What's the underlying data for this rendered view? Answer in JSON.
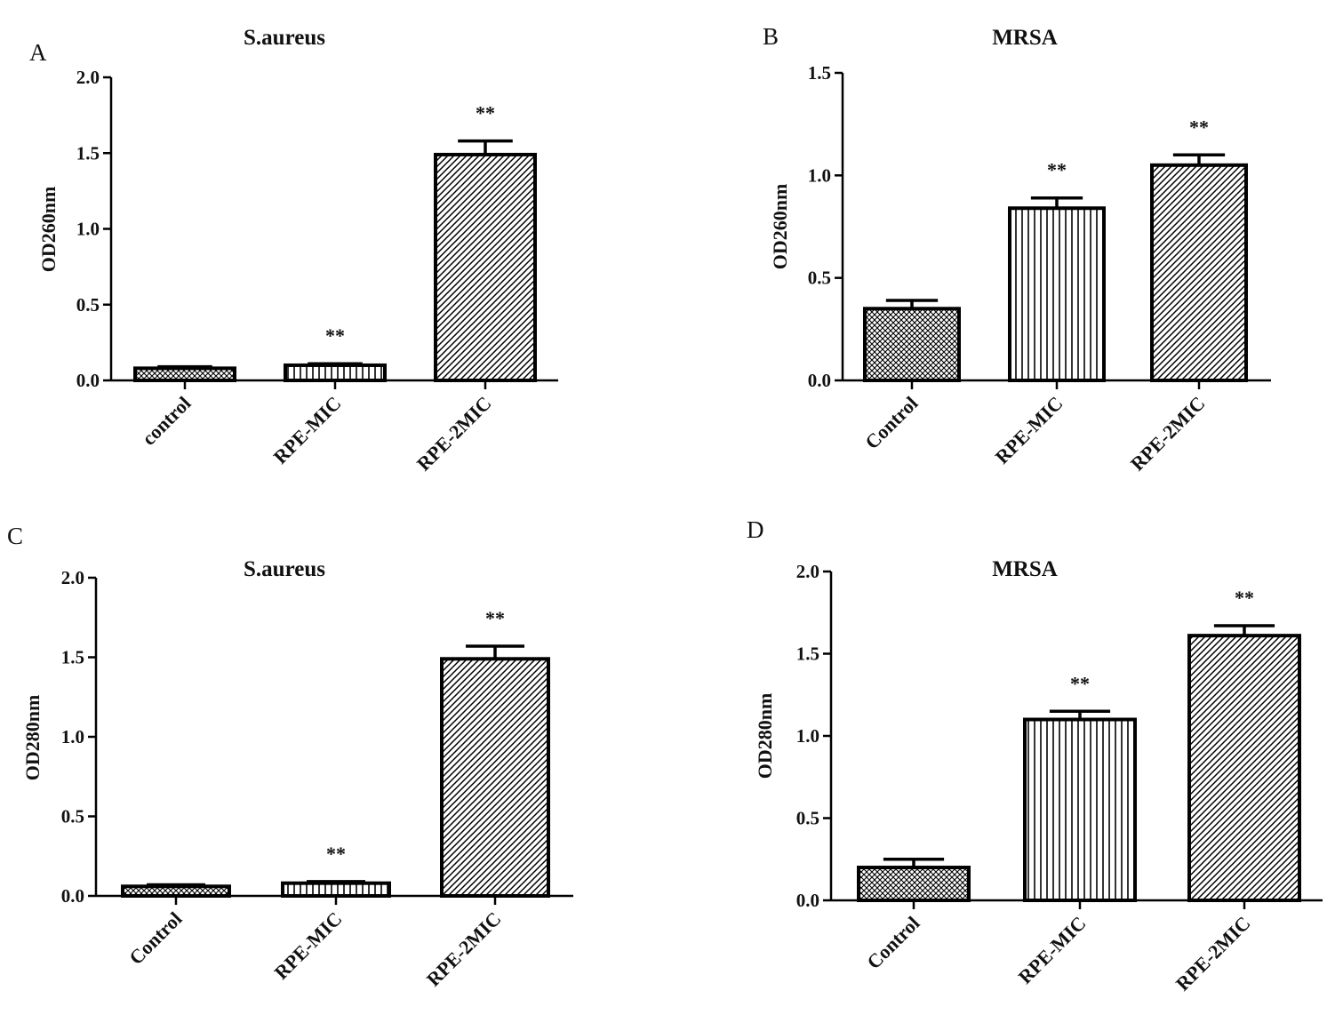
{
  "chart_data": [
    {
      "panel": "A",
      "type": "bar",
      "title": "S.aureus",
      "xlabel": "",
      "ylabel": "OD260nm",
      "ylim": [
        0,
        2.0
      ],
      "yticks": [
        "0.0",
        "0.5",
        "1.0",
        "1.5",
        "2.0"
      ],
      "categories": [
        "control",
        "RPE-MIC",
        "RPE-2MIC"
      ],
      "values": [
        0.08,
        0.1,
        1.49
      ],
      "errors": [
        0.01,
        0.01,
        0.09
      ],
      "annotations": [
        "",
        "**",
        "**"
      ],
      "patterns": [
        "crosshatch",
        "vertical",
        "diagonal"
      ]
    },
    {
      "panel": "B",
      "type": "bar",
      "title": "MRSA",
      "xlabel": "",
      "ylabel": "OD260nm",
      "ylim": [
        0,
        1.5
      ],
      "yticks": [
        "0.0",
        "0.5",
        "1.0",
        "1.5"
      ],
      "categories": [
        "Control",
        "RPE-MIC",
        "RPE-2MIC"
      ],
      "values": [
        0.35,
        0.84,
        1.05
      ],
      "errors": [
        0.04,
        0.05,
        0.05
      ],
      "annotations": [
        "",
        "**",
        "**"
      ],
      "patterns": [
        "crosshatch",
        "vertical",
        "diagonal"
      ]
    },
    {
      "panel": "C",
      "type": "bar",
      "title": "S.aureus",
      "xlabel": "",
      "ylabel": "OD280nm",
      "ylim": [
        0,
        2.0
      ],
      "yticks": [
        "0.0",
        "0.5",
        "1.0",
        "1.5",
        "2.0"
      ],
      "categories": [
        "Control",
        "RPE-MIC",
        "RPE-2MIC"
      ],
      "values": [
        0.06,
        0.08,
        1.49
      ],
      "errors": [
        0.01,
        0.01,
        0.08
      ],
      "annotations": [
        "",
        "**",
        "**"
      ],
      "patterns": [
        "crosshatch",
        "vertical",
        "diagonal"
      ]
    },
    {
      "panel": "D",
      "type": "bar",
      "title": "MRSA",
      "xlabel": "",
      "ylabel": "OD280nm",
      "ylim": [
        0,
        2.0
      ],
      "yticks": [
        "0.0",
        "0.5",
        "1.0",
        "1.5",
        "2.0"
      ],
      "categories": [
        "Control",
        "RPE-MIC",
        "RPE-2MIC"
      ],
      "values": [
        0.2,
        1.1,
        1.61
      ],
      "errors": [
        0.05,
        0.05,
        0.06
      ],
      "annotations": [
        "",
        "**",
        "**"
      ],
      "patterns": [
        "crosshatch",
        "vertical",
        "diagonal"
      ]
    }
  ]
}
